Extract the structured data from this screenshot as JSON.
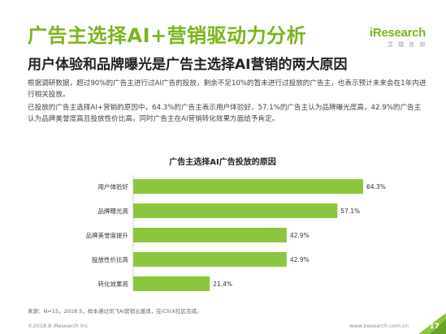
{
  "header": {
    "title": "广告主选择AI+营销驱动力分析",
    "subtitle": "用户体验和品牌曝光是广告主选择AI营销的两大原因",
    "logo_main": "iResearch",
    "logo_sub": "艾瑞咨询"
  },
  "body": {
    "paragraph1": "根据调研数据，超过90%的广告主进行过AI广告的投放，剩余不足10%的暂未进行过投放的广告主，也表示预计未来会在1年内进行相关投放。",
    "paragraph2": "已投放的广告主选择AI+营销的原因中，64.3%的广告主表示用户体验好，57.1%的广告主认为品牌曝光度高，42.9%的广告主认为品牌美誉度高且投放性价比高，同时广告主在AI营销转化效果方面给予肯定。"
  },
  "chart_data": {
    "type": "bar",
    "orientation": "horizontal",
    "title": "广告主选择AI广告投放的原因",
    "categories": [
      "用户体验好",
      "品牌曝光高",
      "品牌美誉度提升",
      "投放性价比高",
      "转化效果高"
    ],
    "values": [
      64.3,
      57.1,
      42.9,
      42.9,
      21.4
    ],
    "value_labels": [
      "64.3%",
      "57.1%",
      "42.9%",
      "42.9%",
      "21.4%"
    ],
    "bar_color": "#8cc63f",
    "xlim": [
      0,
      64.3
    ]
  },
  "footer": {
    "source": "来源：N=15，2018.5，样本通过讯飞AI营销云邀请，在iClick社区完成。",
    "copyright": "©2018.8 iResearch Inc",
    "website": "www.iresearch.com.cn",
    "page": "17"
  },
  "colors": {
    "accent": "#7ab51d",
    "bar": "#8cc63f"
  }
}
